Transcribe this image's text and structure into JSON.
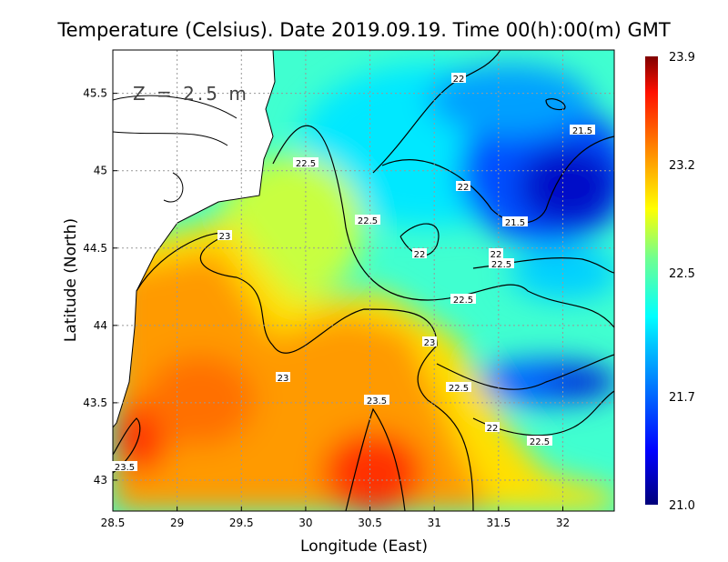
{
  "title": "Temperature (Celsius). Date 2019.09.19. Time 00(h):00(m) GMT",
  "depth_label": "Z = 2.5 m",
  "chart_data": {
    "type": "heatmap",
    "title": "Temperature (Celsius). Date 2019.09.19. Time 00(h):00(m) GMT",
    "xlabel": "Longitude (East)",
    "ylabel": "Latitude (North)",
    "xlim": [
      28.5,
      32.4
    ],
    "ylim": [
      42.8,
      45.78
    ],
    "xticks": [
      "28.5",
      "29",
      "29.5",
      "30",
      "30.5",
      "31",
      "31.5",
      "32"
    ],
    "yticks": [
      "43",
      "43.5",
      "44",
      "44.5",
      "45",
      "45.5"
    ],
    "grid": true,
    "colorbar": {
      "min": 21.0,
      "max": 23.9,
      "ticks": [
        "23.9",
        "23.2",
        "22.5",
        "21.7",
        "21.0"
      ],
      "colormap": "jet",
      "placement": "right"
    },
    "contour_labels": [
      "22",
      "21.5",
      "22.5",
      "22",
      "22.5",
      "21.5",
      "23",
      "22",
      "22",
      "22.5",
      "22.5",
      "23",
      "23",
      "22.5",
      "23.5",
      "22",
      "22.5",
      "23.5"
    ],
    "colors": {
      "warm": "#ff3000",
      "cold": "#0010c0",
      "land": "#ffffff"
    }
  }
}
